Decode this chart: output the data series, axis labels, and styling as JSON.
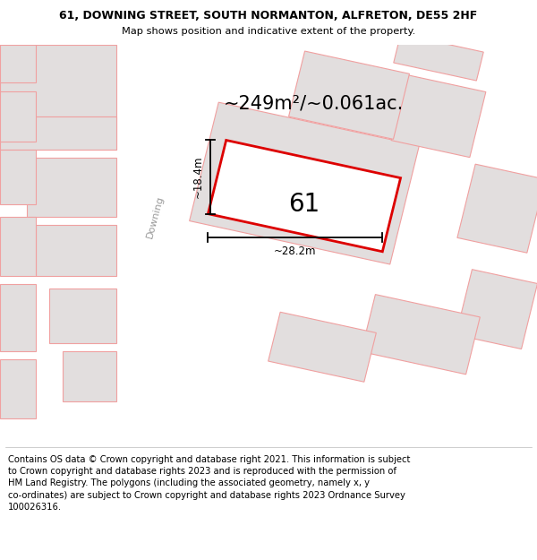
{
  "title": "61, DOWNING STREET, SOUTH NORMANTON, ALFRETON, DE55 2HF",
  "subtitle": "Map shows position and indicative extent of the property.",
  "area_text": "~249m²/~0.061ac.",
  "house_number": "61",
  "dim_height": "~18.4m",
  "dim_width": "~28.2m",
  "street_label": "Downing",
  "bg_color": "#f7f2f2",
  "parcel_fill": "#e2dede",
  "parcel_edge": "#f0a0a0",
  "highlight_color": "#dd0000",
  "highlight_fill": "#f0e8e8",
  "footer_text": "Contains OS data © Crown copyright and database right 2021. This information is subject\nto Crown copyright and database rights 2023 and is reproduced with the permission of\nHM Land Registry. The polygons (including the associated geometry, namely x, y\nco-ordinates) are subject to Crown copyright and database rights 2023 Ordnance Survey\n100026316.",
  "title_fontsize": 9.0,
  "subtitle_fontsize": 8.2,
  "footer_fontsize": 7.2,
  "area_fontsize": 15,
  "number_fontsize": 20,
  "street_label_fontsize": 8,
  "dim_fontsize": 8.5
}
